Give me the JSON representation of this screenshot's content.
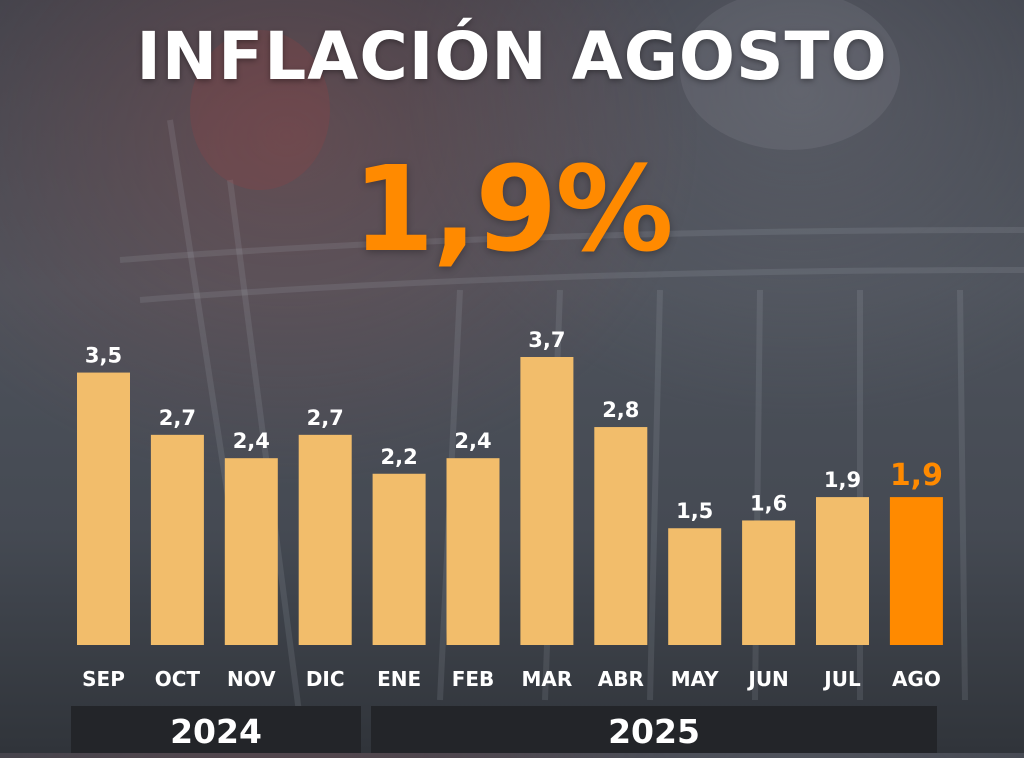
{
  "title": "INFLACIÓN AGOSTO",
  "headline": "1,9%",
  "colors": {
    "bar": "#f2bd6b",
    "highlight": "#ff8a00",
    "text": "#ffffff",
    "band": "#232529"
  },
  "chart_data": {
    "type": "bar",
    "title": "INFLACIÓN AGOSTO",
    "xlabel": "",
    "ylabel": "",
    "grid": false,
    "legend": "none",
    "ylim": [
      0,
      3.7
    ],
    "categories": [
      "SEP",
      "OCT",
      "NOV",
      "DIC",
      "ENE",
      "FEB",
      "MAR",
      "ABR",
      "MAY",
      "JUN",
      "JUL",
      "AGO"
    ],
    "values": [
      3.5,
      2.7,
      2.4,
      2.7,
      2.2,
      2.4,
      3.7,
      2.8,
      1.5,
      1.6,
      1.9,
      1.9
    ],
    "value_labels": [
      "3,5",
      "2,7",
      "2,4",
      "2,7",
      "2,2",
      "2,4",
      "3,7",
      "2,8",
      "1,5",
      "1,6",
      "1,9",
      "1,9"
    ],
    "highlight_category": "AGO",
    "year_groups": [
      {
        "label": "2024",
        "count": 4
      },
      {
        "label": "2025",
        "count": 8
      }
    ]
  }
}
